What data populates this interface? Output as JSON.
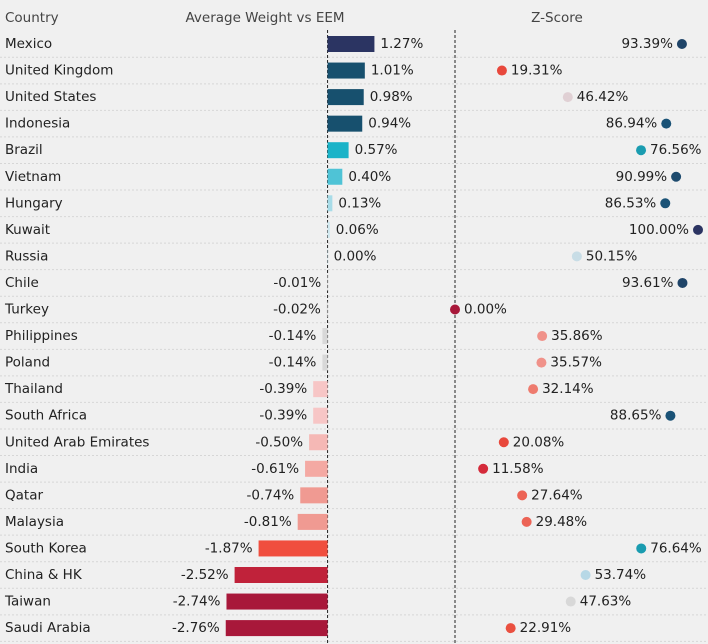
{
  "chart_data": {
    "type": "bar_dot_table",
    "category_label": "Country",
    "categories": [
      "Mexico",
      "United Kingdom",
      "United States",
      "Indonesia",
      "Brazil",
      "Vietnam",
      "Hungary",
      "Kuwait",
      "Russia",
      "Chile",
      "Turkey",
      "Philippines",
      "Poland",
      "Thailand",
      "South Africa",
      "United Arab Emirates",
      "India",
      "Qatar",
      "Malaysia",
      "South Korea",
      "China & HK",
      "Taiwan",
      "Saudi Arabia"
    ],
    "series": [
      {
        "name": "Average Weight vs EEM",
        "mark": "bar",
        "xlim": [
          -4,
          3.4
        ],
        "values": [
          1.27,
          1.01,
          0.98,
          0.94,
          0.57,
          0.4,
          0.13,
          0.06,
          0.0,
          -0.01,
          -0.02,
          -0.14,
          -0.14,
          -0.39,
          -0.39,
          -0.5,
          -0.61,
          -0.74,
          -0.81,
          -1.87,
          -2.52,
          -2.74,
          -2.76
        ],
        "value_labels": [
          "1.27%",
          "1.01%",
          "0.98%",
          "0.94%",
          "0.57%",
          "0.40%",
          "0.13%",
          "0.06%",
          "0.00%",
          "-0.01%",
          "-0.02%",
          "-0.14%",
          "-0.14%",
          "-0.39%",
          "-0.39%",
          "-0.50%",
          "-0.61%",
          "-0.74%",
          "-0.81%",
          "-1.87%",
          "-2.52%",
          "-2.74%",
          "-2.76%"
        ],
        "colors": [
          "#2b3462",
          "#17506e",
          "#17506e",
          "#17506e",
          "#1ab3c8",
          "#4fc3d6",
          "#a8dce8",
          "#cfe8ef",
          "#cfe8ef",
          "#d8d8d8",
          "#d8d8d8",
          "#d8d8d8",
          "#d8d8d8",
          "#f7c6c6",
          "#f7c6c6",
          "#f5b8b5",
          "#f4a9a3",
          "#f09a92",
          "#f09a92",
          "#f04e3e",
          "#c0223a",
          "#a8183a",
          "#a8183a"
        ]
      },
      {
        "name": "Z-Score",
        "mark": "dot",
        "xlim": [
          0,
          100
        ],
        "values": [
          93.39,
          19.31,
          46.42,
          86.94,
          76.56,
          90.99,
          86.53,
          100.0,
          50.15,
          93.61,
          0.0,
          35.86,
          35.57,
          32.14,
          88.65,
          20.08,
          11.58,
          27.64,
          29.48,
          76.64,
          53.74,
          47.63,
          22.91
        ],
        "value_labels": [
          "93.39%",
          "19.31%",
          "46.42%",
          "86.94%",
          "76.56%",
          "90.99%",
          "86.53%",
          "100.00%",
          "50.15%",
          "93.61%",
          "0.00%",
          "35.86%",
          "35.57%",
          "32.14%",
          "88.65%",
          "20.08%",
          "11.58%",
          "27.64%",
          "29.48%",
          "76.64%",
          "53.74%",
          "47.63%",
          "22.91%"
        ],
        "colors": [
          "#1f4468",
          "#e8483c",
          "#e0d0d4",
          "#1a5276",
          "#1a9cb0",
          "#1e4b6e",
          "#1a5276",
          "#2b3462",
          "#c8dde6",
          "#1f4468",
          "#a8183a",
          "#f0928a",
          "#f0928a",
          "#ee7b6e",
          "#1a5276",
          "#e8483c",
          "#d42a3a",
          "#ec6355",
          "#ec6355",
          "#1a9cb0",
          "#b7d8e6",
          "#d8d8d8",
          "#ea5040"
        ]
      }
    ]
  }
}
